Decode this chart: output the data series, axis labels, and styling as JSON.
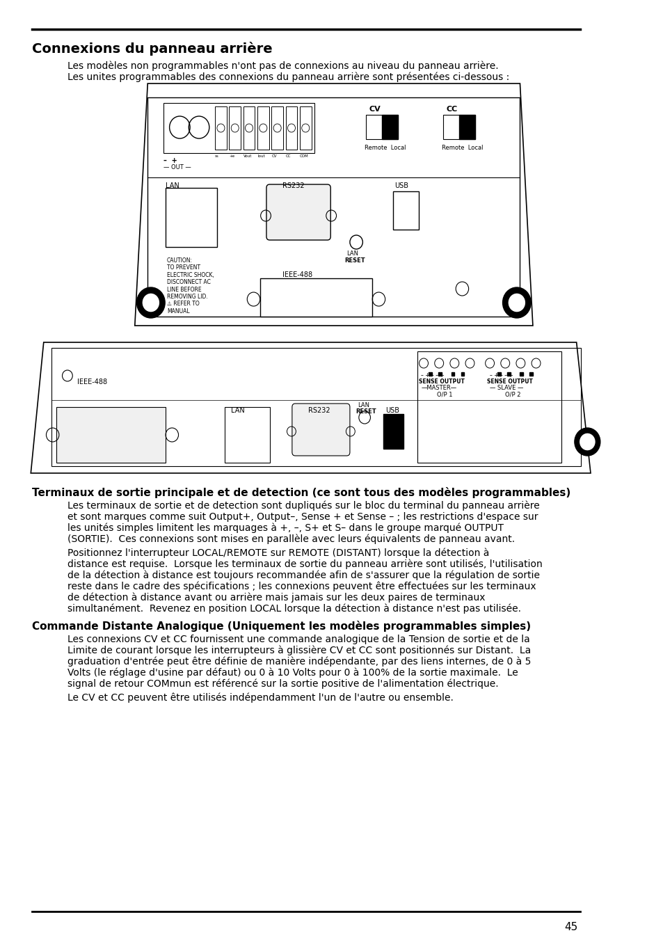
{
  "title": "Connexions du panneau arrière",
  "subtitle1": "Les modèles non programmables n'ont pas de connexions au niveau du panneau arrière.",
  "subtitle2": "Les unites programmables des connexions du panneau arrière sont présentées ci-dessous :",
  "section2_title": "Terminaux de sortie principale et de detection (ce sont tous des modèles programmables)",
  "section3_title": "Commande Distante Analogique (Uniquement les modèles programmables simples)",
  "para1_lines": [
    "Les terminaux de sortie et de detection sont dupliqués sur le bloc du terminal du panneau arrière",
    "et sont marques comme suit Output+, Output–, Sense + et Sense – ; les restrictions d'espace sur",
    "les unités simples limitent les marquages à +, –, S+ et S– dans le groupe marqué OUTPUT",
    "(SORTIE).  Ces connexions sont mises en parallèle avec leurs équivalents de panneau avant."
  ],
  "para2_lines": [
    "Positionnez l'interrupteur LOCAL/REMOTE sur REMOTE (DISTANT) lorsque la détection à",
    "distance est requise.  Lorsque les terminaux de sortie du panneau arrière sont utilisés, l'utilisation",
    "de la détection à distance est toujours recommandée afin de s'assurer que la régulation de sortie",
    "reste dans le cadre des spécifications ; les connexions peuvent être effectuées sur les terminaux",
    "de détection à distance avant ou arrière mais jamais sur les deux paires de terminaux",
    "simultanément.  Revenez en position LOCAL lorsque la détection à distance n'est pas utilisée."
  ],
  "para3_lines": [
    "Les connexions CV et CC fournissent une commande analogique de la Tension de sortie et de la",
    "Limite de courant lorsque les interrupteurs à glissière CV et CC sont positionnés sur Distant.  La",
    "graduation d'entrée peut être définie de manière indépendante, par des liens internes, de 0 à 5",
    "Volts (le réglage d'usine par défaut) ou 0 à 10 Volts pour 0 à 100% de la sortie maximale.  Le",
    "signal de retour COMmun est référencé sur la sortie positive de l'alimentation électrique."
  ],
  "para4_lines": [
    "Le CV et CC peuvent être utilisés indépendamment l'un de l'autre ou ensemble."
  ],
  "bg_color": "#ffffff",
  "text_color": "#000000",
  "page_number": "45"
}
